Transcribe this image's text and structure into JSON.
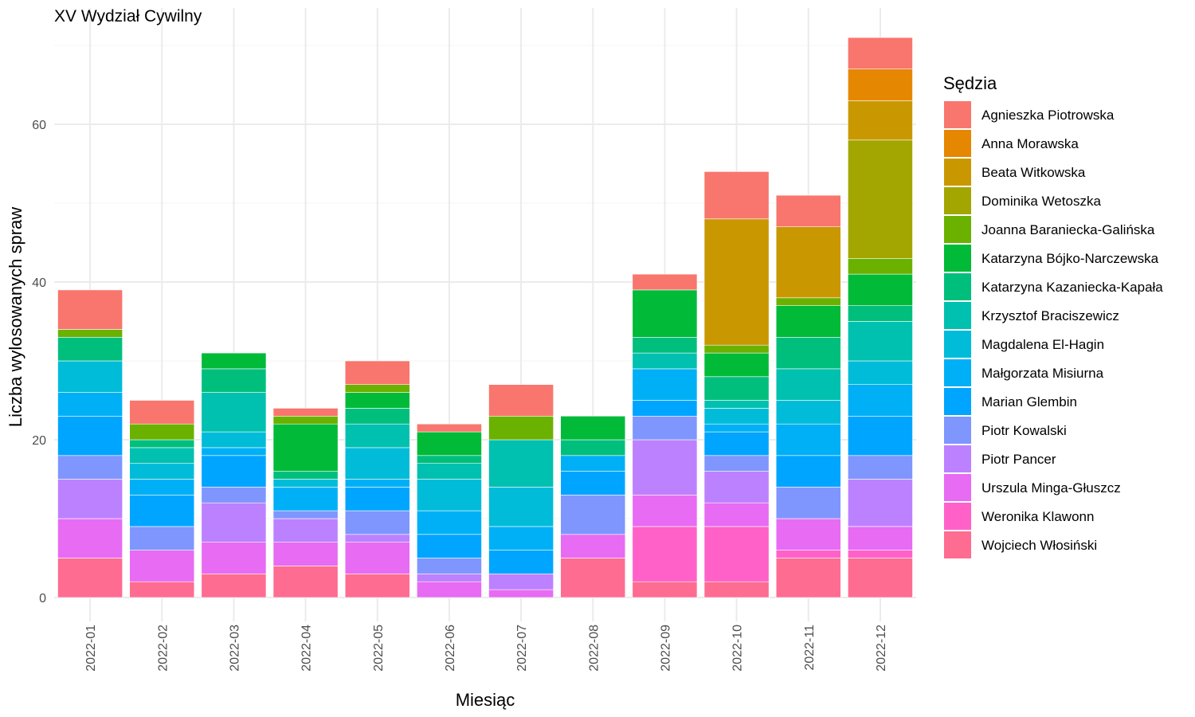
{
  "chart_data": {
    "type": "bar",
    "stacked": true,
    "title": "XV Wydział Cywilny",
    "xlabel": "Miesiąc",
    "ylabel": "Liczba wylosowanych spraw",
    "ylim": [
      0,
      72
    ],
    "yticks": [
      0,
      20,
      40,
      60
    ],
    "grid": true,
    "legend_title": "Sędzia",
    "legend_position": "right",
    "categories": [
      "2022-01",
      "2022-02",
      "2022-03",
      "2022-04",
      "2022-05",
      "2022-06",
      "2022-07",
      "2022-08",
      "2022-09",
      "2022-10",
      "2022-11",
      "2022-12"
    ],
    "series": [
      {
        "name": "Agnieszka Piotrowska",
        "color": "#F8766D",
        "values": [
          5,
          3,
          0,
          1,
          3,
          1,
          4,
          0,
          2,
          6,
          4,
          4
        ]
      },
      {
        "name": "Anna Morawska",
        "color": "#E58700",
        "values": [
          0,
          0,
          0,
          0,
          0,
          0,
          0,
          0,
          0,
          0,
          0,
          4
        ]
      },
      {
        "name": "Beata Witkowska",
        "color": "#C99800",
        "values": [
          0,
          0,
          0,
          0,
          0,
          0,
          0,
          0,
          0,
          16,
          9,
          5
        ]
      },
      {
        "name": "Dominika Wetoszka",
        "color": "#A3A500",
        "values": [
          0,
          0,
          0,
          0,
          0,
          0,
          0,
          0,
          0,
          0,
          0,
          15
        ]
      },
      {
        "name": "Joanna Baraniecka-Galińska",
        "color": "#6BB100",
        "values": [
          1,
          2,
          0,
          1,
          1,
          0,
          3,
          0,
          0,
          1,
          1,
          2
        ]
      },
      {
        "name": "Katarzyna Bójko-Narczewska",
        "color": "#00BA38",
        "values": [
          0,
          0,
          2,
          6,
          2,
          3,
          0,
          3,
          6,
          3,
          4,
          4
        ]
      },
      {
        "name": "Katarzyna Kazaniecka-Kapała",
        "color": "#00BF7D",
        "values": [
          3,
          1,
          3,
          1,
          2,
          1,
          0,
          2,
          2,
          3,
          4,
          2
        ]
      },
      {
        "name": "Krzysztof Braciszewicz",
        "color": "#00C0AF",
        "values": [
          0,
          2,
          5,
          0,
          3,
          2,
          6,
          0,
          2,
          1,
          4,
          5
        ]
      },
      {
        "name": "Magdalena El-Hagin",
        "color": "#00BCD8",
        "values": [
          4,
          2,
          2,
          1,
          4,
          4,
          5,
          0,
          0,
          2,
          3,
          3
        ]
      },
      {
        "name": "Małgorzata Misiurna",
        "color": "#00B0F6",
        "values": [
          3,
          2,
          1,
          3,
          1,
          3,
          3,
          2,
          4,
          1,
          4,
          4
        ]
      },
      {
        "name": "Marian Glembin",
        "color": "#00A5FF",
        "values": [
          5,
          4,
          4,
          0,
          3,
          3,
          3,
          3,
          2,
          3,
          4,
          5
        ]
      },
      {
        "name": "Piotr Kowalski",
        "color": "#7F96FF",
        "values": [
          3,
          3,
          2,
          1,
          3,
          2,
          0,
          5,
          3,
          2,
          4,
          3
        ]
      },
      {
        "name": "Piotr Pancer",
        "color": "#BC81FF",
        "values": [
          5,
          0,
          5,
          3,
          1,
          1,
          2,
          0,
          7,
          4,
          0,
          6
        ]
      },
      {
        "name": "Urszula Minga-Głuszcz",
        "color": "#E76BF3",
        "values": [
          5,
          4,
          4,
          3,
          4,
          2,
          1,
          3,
          4,
          3,
          4,
          3
        ]
      },
      {
        "name": "Weronika Klawonn",
        "color": "#FF61C9",
        "values": [
          0,
          0,
          0,
          0,
          0,
          0,
          0,
          0,
          7,
          7,
          1,
          1
        ]
      },
      {
        "name": "Wojciech Włosiński",
        "color": "#FF6C91",
        "values": [
          5,
          2,
          3,
          4,
          3,
          0,
          0,
          5,
          2,
          2,
          5,
          5
        ]
      }
    ]
  }
}
